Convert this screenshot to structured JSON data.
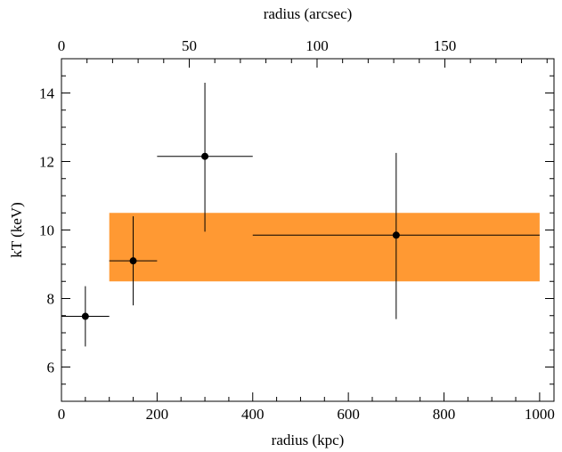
{
  "chart_data": {
    "type": "scatter",
    "title": "",
    "xlabel": "radius (kpc)",
    "ylabel": "kT (keV)",
    "x2label": "radius (arcsec)",
    "xlim": [
      0,
      1030
    ],
    "ylim": [
      5.0,
      15.0
    ],
    "x2lim": [
      0,
      192.7
    ],
    "x_ticks": [
      0,
      200,
      400,
      600,
      800,
      1000
    ],
    "x_tick_labels": [
      "0",
      "200",
      "400",
      "600",
      "800",
      "1000"
    ],
    "y_ticks": [
      6,
      8,
      10,
      12,
      14
    ],
    "y_tick_labels": [
      "6",
      "8",
      "10",
      "12",
      "14"
    ],
    "x2_ticks": [
      0,
      50,
      100,
      150
    ],
    "x2_tick_labels": [
      "0",
      "50",
      "100",
      "150"
    ],
    "grid": false,
    "band": {
      "x_range": [
        100,
        1000
      ],
      "y_range": [
        8.5,
        10.5
      ],
      "color": "#ff9933"
    },
    "series": [
      {
        "marker_color": "#000000",
        "points": [
          {
            "x": 50,
            "y": 7.48,
            "x_err": [
              50,
              50
            ],
            "y_err": [
              0.88,
              0.88
            ]
          },
          {
            "x": 150,
            "y": 9.1,
            "x_err": [
              50,
              50
            ],
            "y_err": [
              1.3,
              1.3
            ]
          },
          {
            "x": 300,
            "y": 12.15,
            "x_err": [
              100,
              100
            ],
            "y_err": [
              2.2,
              2.15
            ]
          },
          {
            "x": 700,
            "y": 9.85,
            "x_err": [
              300,
              300
            ],
            "y_err": [
              2.45,
              2.4
            ]
          }
        ]
      }
    ]
  }
}
